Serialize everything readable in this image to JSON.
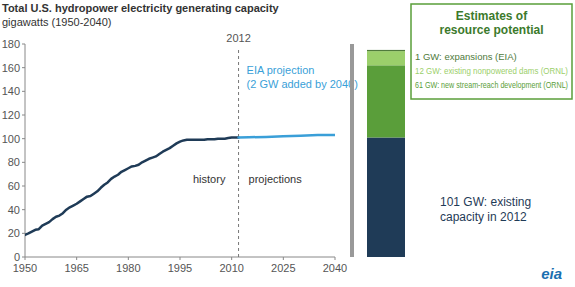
{
  "chart_data": [
    {
      "type": "line",
      "title": "Total U.S. hydropower electricity generating capacity",
      "subtitle": "gigawatts (1950-2040)",
      "x": [
        1950,
        1951,
        1952,
        1953,
        1954,
        1955,
        1956,
        1957,
        1958,
        1959,
        1960,
        1961,
        1962,
        1963,
        1964,
        1965,
        1966,
        1967,
        1968,
        1969,
        1970,
        1971,
        1972,
        1973,
        1974,
        1975,
        1976,
        1977,
        1978,
        1979,
        1980,
        1981,
        1982,
        1983,
        1984,
        1985,
        1986,
        1987,
        1988,
        1989,
        1990,
        1991,
        1992,
        1993,
        1994,
        1995,
        1996,
        1997,
        1998,
        1999,
        2000,
        2001,
        2002,
        2003,
        2004,
        2005,
        2006,
        2007,
        2008,
        2009,
        2010,
        2011,
        2012,
        2015,
        2020,
        2025,
        2030,
        2035,
        2040
      ],
      "series": [
        {
          "name": "history",
          "color": "#1f3b57",
          "values": [
            18.7,
            20,
            21.5,
            23,
            23.5,
            26.5,
            28,
            29.5,
            32,
            34,
            35,
            37,
            40,
            42,
            43.5,
            45,
            47,
            49,
            51,
            51.5,
            53.5,
            55.5,
            58.5,
            61,
            63,
            66,
            68,
            69.5,
            72,
            73.5,
            75,
            76.5,
            77,
            78,
            80,
            81.5,
            83,
            84,
            85,
            87,
            89,
            90.5,
            92,
            94,
            96,
            97.5,
            98.5,
            99,
            99,
            99,
            99,
            99,
            99,
            99.5,
            99.5,
            99.5,
            100,
            100,
            100,
            100.5,
            101,
            101,
            101,
            null,
            null,
            null,
            null,
            null,
            null
          ]
        },
        {
          "name": "projections",
          "color": "#3a9fd8",
          "values": [
            null,
            null,
            null,
            null,
            null,
            null,
            null,
            null,
            null,
            null,
            null,
            null,
            null,
            null,
            null,
            null,
            null,
            null,
            null,
            null,
            null,
            null,
            null,
            null,
            null,
            null,
            null,
            null,
            null,
            null,
            null,
            null,
            null,
            null,
            null,
            null,
            null,
            null,
            null,
            null,
            null,
            null,
            null,
            null,
            null,
            null,
            null,
            null,
            null,
            null,
            null,
            null,
            null,
            null,
            null,
            null,
            null,
            null,
            null,
            null,
            null,
            null,
            101,
            101.2,
            101.5,
            102,
            102.5,
            103,
            103
          ]
        }
      ],
      "xlim": [
        1950,
        2040
      ],
      "xticks": [
        1950,
        1965,
        1980,
        1995,
        2010,
        2025,
        2040
      ],
      "ylim": [
        0,
        180
      ],
      "yticks": [
        0,
        20,
        40,
        60,
        80,
        100,
        120,
        140,
        160,
        180
      ],
      "grid": false,
      "annotations": [
        {
          "text": "2012",
          "x": 2012
        },
        {
          "text": "EIA projection"
        },
        {
          "text": "(2 GW added by 2040)"
        }
      ]
    },
    {
      "type": "bar",
      "title": "Estimates of resource potential",
      "stacked": true,
      "categories": [
        null
      ],
      "series": [
        {
          "name": "101 GW: existing capacity in 2012",
          "color": "#1f3b57",
          "values": [
            101
          ]
        },
        {
          "name": "61 GW: new stream-reach development (ORNL)",
          "color": "#5a9e3a",
          "values": [
            61
          ]
        },
        {
          "name": "12 GW: existing nonpowered dams (ORNL)",
          "color": "#9bcf6b",
          "values": [
            12
          ]
        },
        {
          "name": "1 GW: expansions (EIA)",
          "color": "#4f7a3c",
          "values": [
            1
          ]
        }
      ],
      "ylim": [
        0,
        180
      ],
      "tick_labels": false
    }
  ],
  "logo": "eia"
}
